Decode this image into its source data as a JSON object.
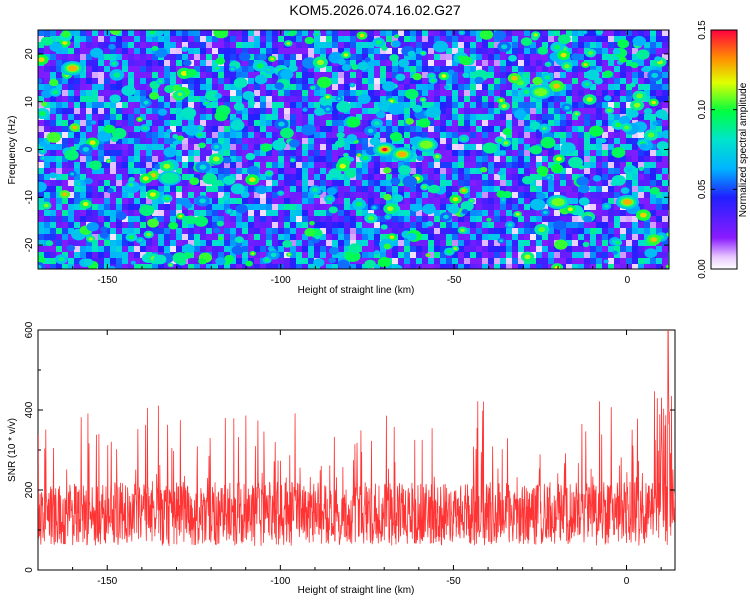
{
  "chart_data": [
    {
      "type": "heatmap",
      "title": "KOM5.2026.074.16.02.G27",
      "xlabel": "Height of straight line (km)",
      "ylabel": "Frequency (Hz)",
      "xlim": [
        -170,
        12
      ],
      "ylim": [
        -25,
        25
      ],
      "xticks": [
        -150,
        -100,
        -50,
        0
      ],
      "yticks": [
        -20,
        -10,
        0,
        10,
        20
      ],
      "colorbar": {
        "label": "Normalized spectral amplitude",
        "range": [
          0.0,
          0.15
        ],
        "ticks": [
          0.0,
          0.05,
          0.1,
          0.15
        ],
        "tick_labels": [
          "0.00",
          "0.05",
          "0.10",
          "0.15"
        ]
      },
      "notable_peaks": [
        {
          "x": -160,
          "y": 17,
          "value": 0.14
        },
        {
          "x": -70,
          "y": 0,
          "value": 0.15
        },
        {
          "x": -65,
          "y": -1,
          "value": 0.14
        },
        {
          "x": -58,
          "y": 1,
          "value": 0.12
        },
        {
          "x": -132,
          "y": -6,
          "value": 0.1
        },
        {
          "x": 0,
          "y": -11,
          "value": 0.14
        },
        {
          "x": -20,
          "y": -11,
          "value": 0.12
        },
        {
          "x": -25,
          "y": 12,
          "value": 0.11
        }
      ],
      "background_level": 0.03
    },
    {
      "type": "line",
      "xlabel": "Height of straight line (km)",
      "ylabel": "SNR (10 * v/v)",
      "xlim": [
        -170,
        14
      ],
      "ylim": [
        0,
        600
      ],
      "xticks": [
        -150,
        -100,
        -50,
        0
      ],
      "yticks": [
        0,
        200,
        400,
        600
      ],
      "series": [
        {
          "name": "SNR",
          "color": "#ff3333",
          "baseline_mean": 140,
          "typical_range": [
            20,
            300
          ],
          "max_value": 600,
          "max_at_x": 12
        }
      ]
    }
  ]
}
